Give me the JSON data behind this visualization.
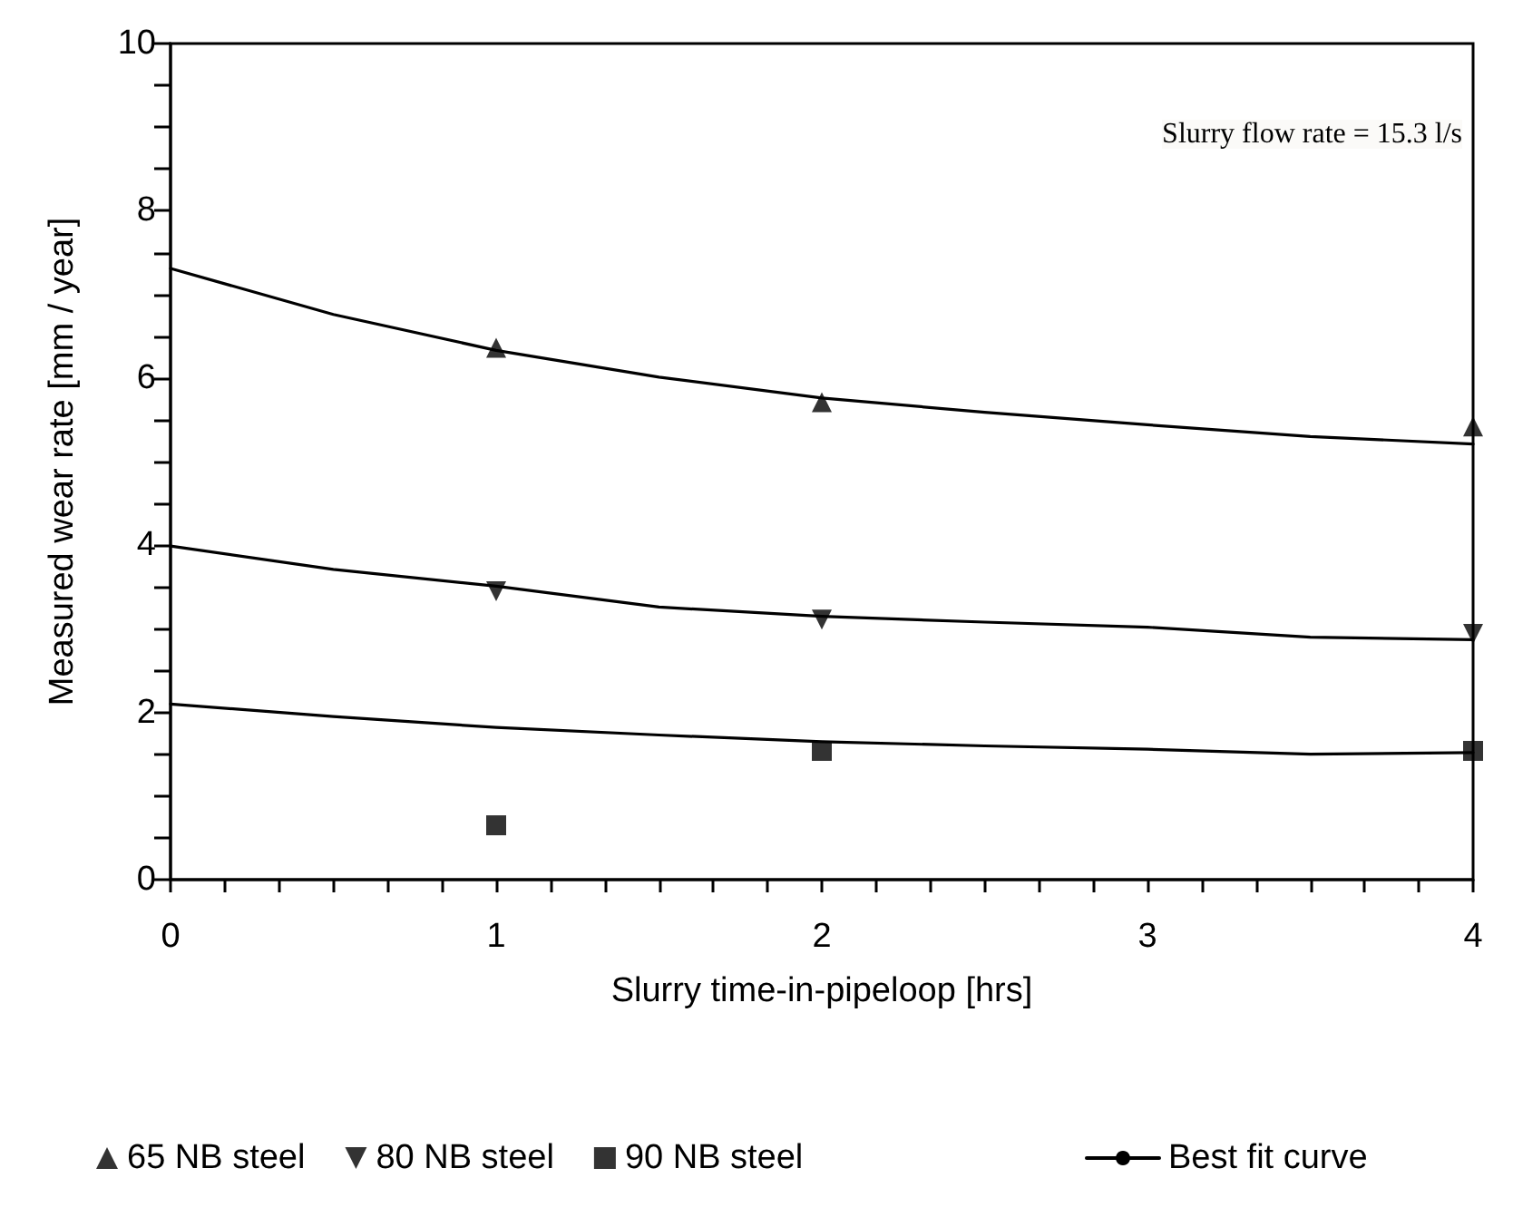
{
  "chart_data": {
    "type": "scatter",
    "xlabel": "Slurry time-in-pipeloop [hrs]",
    "ylabel": "Measured wear rate [mm / year]",
    "annotations": [
      "Slurry flow rate = 15.3 l/s"
    ],
    "xlim": [
      0,
      4
    ],
    "ylim": [
      0,
      10
    ],
    "xticks": [
      0,
      {
        "value": 0.1667,
        "label": null
      },
      {
        "value": 0.3333,
        "label": null
      },
      {
        "value": 0.5,
        "label": null
      },
      {
        "value": 0.6667,
        "label": null
      },
      {
        "value": 0.8333,
        "label": null
      },
      1,
      {
        "value": 1.1667,
        "label": null
      },
      {
        "value": 1.3333,
        "label": null
      },
      {
        "value": 1.5,
        "label": null
      },
      {
        "value": 1.6667,
        "label": null
      },
      {
        "value": 1.8333,
        "label": null
      },
      2,
      {
        "value": 2.1667,
        "label": null
      },
      {
        "value": 2.3333,
        "label": null
      },
      {
        "value": 2.5,
        "label": null
      },
      {
        "value": 2.6667,
        "label": null
      },
      {
        "value": 2.8333,
        "label": null
      },
      3,
      {
        "value": 3.1667,
        "label": null
      },
      {
        "value": 3.3333,
        "label": null
      },
      {
        "value": 3.5,
        "label": null
      },
      {
        "value": 3.6667,
        "label": null
      },
      {
        "value": 3.8333,
        "label": null
      },
      4
    ],
    "yticks": [
      0,
      {
        "value": 0.5,
        "label": null
      },
      {
        "value": 1,
        "label": null
      },
      {
        "value": 1.5,
        "label": null
      },
      2,
      {
        "value": 2.5,
        "label": null
      },
      {
        "value": 3,
        "label": null
      },
      {
        "value": 3.5,
        "label": null
      },
      4,
      {
        "value": 4.5,
        "label": null
      },
      {
        "value": 5,
        "label": null
      },
      {
        "value": 5.5,
        "label": null
      },
      6,
      {
        "value": 6.5,
        "label": null
      },
      {
        "value": 7,
        "label": null
      },
      {
        "value": 7.5,
        "label": null
      },
      8,
      {
        "value": 8.5,
        "label": null
      },
      {
        "value": 9,
        "label": null
      },
      {
        "value": 9.5,
        "label": null
      },
      10
    ],
    "grid": false,
    "legend": "bottom",
    "series": [
      {
        "name": "65 NB steel",
        "marker": "triangle",
        "color": "#000000",
        "x": [
          1,
          2,
          4
        ],
        "values": [
          6.36,
          5.71,
          5.42
        ]
      },
      {
        "name": "80 NB steel",
        "marker": "triangle-down",
        "color": "#000000",
        "x": [
          1,
          2,
          4
        ],
        "values": [
          3.45,
          3.11,
          2.94
        ]
      },
      {
        "name": "90 NB steel",
        "marker": "square",
        "color": "#000000",
        "x": [
          1,
          2,
          4
        ],
        "values": [
          0.65,
          1.54,
          1.54
        ]
      },
      {
        "name": "Best fit curve",
        "type": "line",
        "marker": "none",
        "color": "#000000",
        "x": [
          0,
          0.5,
          1,
          1.5,
          2,
          2.5,
          3,
          3.5,
          4
        ],
        "values": [
          7.31,
          6.76,
          6.33,
          6.01,
          5.76,
          5.59,
          5.44,
          5.3,
          5.21
        ]
      },
      {
        "type": "line",
        "marker": "none",
        "color": "#000000",
        "x": [
          0,
          0.5,
          1,
          1.5,
          2,
          2.5,
          3,
          3.5,
          4
        ],
        "values": [
          3.99,
          3.71,
          3.51,
          3.26,
          3.15,
          3.08,
          3.02,
          2.9,
          2.87
        ]
      },
      {
        "type": "line",
        "marker": "none",
        "color": "#000000",
        "x": [
          0,
          0.5,
          1,
          1.5,
          2,
          2.5,
          3,
          3.5,
          4
        ],
        "values": [
          2.1,
          1.95,
          1.82,
          1.73,
          1.65,
          1.6,
          1.56,
          1.5,
          1.52
        ]
      }
    ]
  }
}
